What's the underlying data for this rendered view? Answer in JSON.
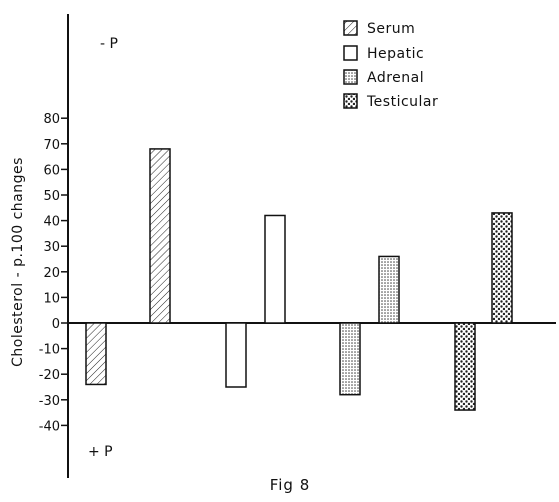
{
  "chart_data": {
    "type": "bar",
    "title": "",
    "caption": "Fig 8",
    "ylabel": "Cholesterol - p.100 changes",
    "xlabel": "",
    "ylim": [
      -40,
      80
    ],
    "yticks": [
      -40,
      -30,
      -20,
      -10,
      0,
      10,
      20,
      30,
      40,
      50,
      60,
      70,
      80
    ],
    "ytick_labels": [
      "-40",
      "-30",
      "-20",
      "-10",
      "0",
      "10",
      "20",
      "30",
      "40",
      "50",
      "60",
      "70",
      "80"
    ],
    "grid": false,
    "legend_position": "top-right",
    "annotations": {
      "top": "- P",
      "bottom": "+ P"
    },
    "categories": [
      "Serum",
      "Hepatic",
      "Adrenal",
      "Testicular"
    ],
    "series": [
      {
        "name": "+ P",
        "values": [
          -24,
          -25,
          -28,
          -34
        ]
      },
      {
        "name": "- P",
        "values": [
          68,
          42,
          26,
          43
        ]
      }
    ],
    "legend": [
      {
        "label": "Serum",
        "pattern": "hatch"
      },
      {
        "label": "Hepatic",
        "pattern": "blank"
      },
      {
        "label": "Adrenal",
        "pattern": "fine-dots"
      },
      {
        "label": "Testicular",
        "pattern": "coarse-dots"
      }
    ]
  }
}
